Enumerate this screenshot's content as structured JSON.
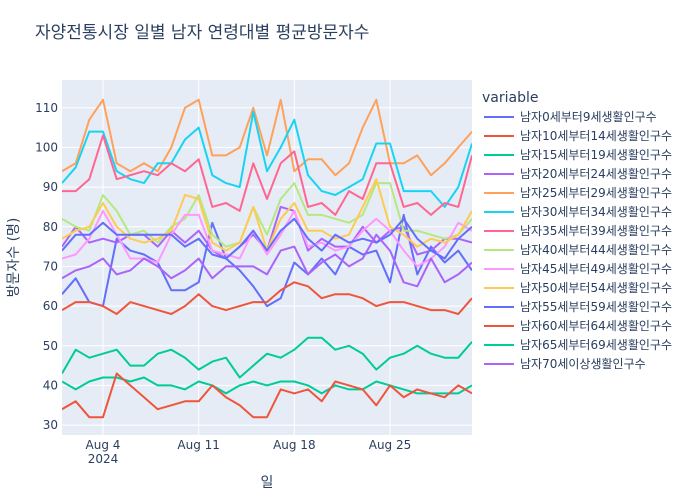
{
  "chart_data": {
    "type": "line",
    "title": "자양전통시장 일별 남자 연령대별 평균방문자수",
    "xlabel": "일",
    "ylabel": "방문자수 (명)",
    "ylim": [
      27.5,
      117
    ],
    "yticks": [
      30,
      40,
      50,
      60,
      70,
      80,
      90,
      100,
      110
    ],
    "x_ticks": [
      "Aug 4",
      "Aug 11",
      "Aug 18",
      "Aug 25"
    ],
    "x_year_label": "2024",
    "legend_title": "variable",
    "x_start": "2024-08-01",
    "x": [
      "2024-08-01",
      "2024-08-02",
      "2024-08-03",
      "2024-08-04",
      "2024-08-05",
      "2024-08-06",
      "2024-08-07",
      "2024-08-08",
      "2024-08-09",
      "2024-08-10",
      "2024-08-11",
      "2024-08-12",
      "2024-08-13",
      "2024-08-14",
      "2024-08-15",
      "2024-08-16",
      "2024-08-17",
      "2024-08-18",
      "2024-08-19",
      "2024-08-20",
      "2024-08-21",
      "2024-08-22",
      "2024-08-23",
      "2024-08-24",
      "2024-08-25",
      "2024-08-26",
      "2024-08-27",
      "2024-08-28",
      "2024-08-29",
      "2024-08-30",
      "2024-08-31"
    ],
    "series": [
      {
        "name": "남자0세부터9세생활인구수",
        "color": "#636efa",
        "values": [
          63,
          67,
          61,
          60,
          77,
          74,
          73,
          71,
          64,
          64,
          66,
          81,
          72,
          69,
          65,
          60,
          62,
          71,
          68,
          72,
          68,
          75,
          73,
          74,
          66,
          83,
          68,
          75,
          71,
          74,
          69
        ]
      },
      {
        "name": "남자10세부터14세생활인구수",
        "color": "#EF553B",
        "values": [
          59,
          61,
          61,
          60,
          58,
          61,
          60,
          59,
          58,
          60,
          63,
          60,
          59,
          60,
          61,
          61,
          64,
          66,
          65,
          62,
          63,
          63,
          62,
          60,
          61,
          61,
          60,
          59,
          59,
          58,
          62
        ]
      },
      {
        "name": "남자15세부터19세생활인구수",
        "color": "#00cc96",
        "values": [
          41,
          39,
          41,
          42,
          42,
          41,
          42,
          40,
          40,
          39,
          41,
          40,
          38,
          40,
          41,
          40,
          41,
          41,
          40,
          38,
          40,
          39,
          39,
          41,
          40,
          39,
          38,
          38,
          38,
          38,
          40
        ]
      },
      {
        "name": "남자20세부터24세생활인구수",
        "color": "#ab63fa",
        "values": [
          75,
          80,
          76,
          77,
          76,
          78,
          78,
          75,
          79,
          76,
          79,
          74,
          72,
          75,
          78,
          74,
          85,
          84,
          74,
          77,
          75,
          75,
          80,
          76,
          79,
          80,
          73,
          74,
          77,
          77,
          76
        ]
      },
      {
        "name": "남자25세부터29세생활인구수",
        "color": "#FFA15A",
        "values": [
          94,
          96,
          107,
          112,
          96,
          94,
          96,
          94,
          100,
          110,
          112,
          98,
          98,
          100,
          110,
          98,
          112,
          94,
          97,
          97,
          93,
          96,
          105,
          112,
          96,
          96,
          98,
          93,
          96,
          100,
          104
        ]
      },
      {
        "name": "남자30세부터34세생활인구수",
        "color": "#19d3f3",
        "values": [
          91,
          95,
          104,
          104,
          94,
          92,
          91,
          96,
          96,
          102,
          105,
          93,
          91,
          90,
          109,
          94,
          100,
          107,
          93,
          89,
          88,
          90,
          92,
          101,
          101,
          89,
          89,
          89,
          85,
          90,
          101
        ]
      },
      {
        "name": "남자35세부터39세생활인구수",
        "color": "#FF6692",
        "values": [
          89,
          89,
          92,
          103,
          92,
          93,
          94,
          93,
          96,
          94,
          97,
          85,
          86,
          84,
          96,
          87,
          96,
          99,
          85,
          86,
          83,
          89,
          87,
          96,
          96,
          85,
          86,
          83,
          86,
          85,
          98
        ]
      },
      {
        "name": "남자40세부터44세생활인구수",
        "color": "#B6E880",
        "values": [
          82,
          80,
          79,
          88,
          84,
          78,
          79,
          76,
          80,
          82,
          88,
          78,
          75,
          76,
          85,
          78,
          87,
          91,
          83,
          83,
          82,
          81,
          83,
          91,
          91,
          79,
          79,
          78,
          77,
          78,
          82
        ]
      },
      {
        "name": "남자45세부터49세생활인구수",
        "color": "#FF97FF",
        "values": [
          72,
          73,
          77,
          84,
          78,
          72,
          72,
          71,
          78,
          83,
          83,
          74,
          73,
          72,
          79,
          73,
          78,
          84,
          75,
          76,
          74,
          75,
          79,
          82,
          79,
          74,
          70,
          72,
          75,
          81,
          79
        ]
      },
      {
        "name": "남자50세부터54세생활인구수",
        "color": "#FECB52",
        "values": [
          77,
          79,
          80,
          86,
          80,
          77,
          76,
          77,
          79,
          88,
          87,
          76,
          74,
          76,
          85,
          74,
          82,
          86,
          79,
          79,
          77,
          78,
          85,
          92,
          80,
          78,
          75,
          77,
          76,
          78,
          84
        ]
      },
      {
        "name": "남자55세부터59세생활인구수",
        "color": "#636efa",
        "values": [
          74,
          78,
          78,
          81,
          78,
          78,
          78,
          78,
          78,
          75,
          77,
          73,
          72,
          75,
          79,
          74,
          79,
          82,
          77,
          74,
          78,
          76,
          77,
          76,
          78,
          82,
          77,
          74,
          72,
          77,
          80
        ]
      },
      {
        "name": "남자60세부터64세생활인구수",
        "color": "#EF553B",
        "values": [
          34,
          36,
          32,
          32,
          43,
          40,
          37,
          34,
          35,
          36,
          36,
          40,
          37,
          35,
          32,
          32,
          39,
          38,
          39,
          36,
          41,
          40,
          39,
          35,
          40,
          37,
          39,
          38,
          37,
          40,
          38
        ]
      },
      {
        "name": "남자65세부터69세생활인구수",
        "color": "#00cc96",
        "values": [
          43,
          49,
          47,
          48,
          49,
          45,
          45,
          48,
          49,
          47,
          44,
          46,
          47,
          42,
          45,
          48,
          47,
          49,
          52,
          52,
          49,
          50,
          48,
          44,
          47,
          48,
          50,
          48,
          47,
          47,
          51
        ]
      },
      {
        "name": "남자70세이상생활인구수",
        "color": "#ab63fa",
        "values": [
          67,
          69,
          70,
          72,
          68,
          69,
          72,
          70,
          67,
          69,
          72,
          67,
          70,
          70,
          70,
          68,
          74,
          75,
          68,
          71,
          73,
          70,
          72,
          78,
          74,
          66,
          65,
          72,
          66,
          68,
          71
        ]
      }
    ]
  }
}
